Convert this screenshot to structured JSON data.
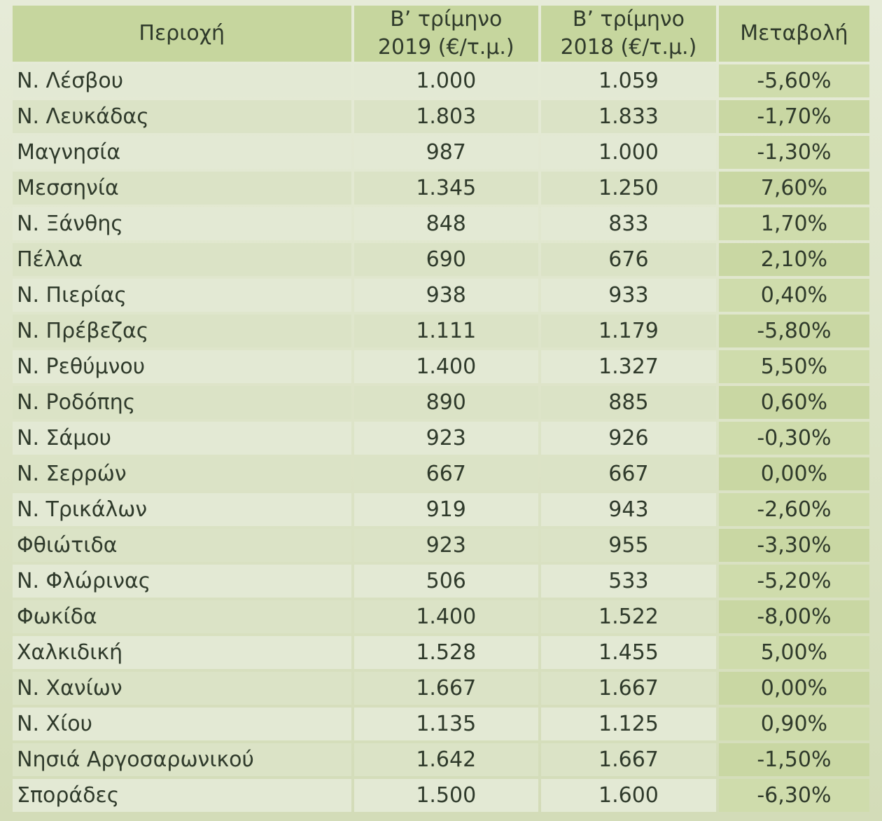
{
  "headers": {
    "region": "Περιοχή",
    "q2_2019_line1": "Β’ τρίμηνο",
    "q2_2019_line2": "2019 (€/τ.μ.)",
    "q2_2018_line1": "Β’ τρίμηνο",
    "q2_2018_line2": "2018 (€/τ.μ.)",
    "change": "Μεταβολή"
  },
  "rows": [
    {
      "region": "Ν. Λέσβου",
      "y2019": "1.000",
      "y2018": "1.059",
      "change": "-5,60%"
    },
    {
      "region": "Ν. Λευκάδας",
      "y2019": "1.803",
      "y2018": "1.833",
      "change": "-1,70%"
    },
    {
      "region": "Μαγνησία",
      "y2019": "987",
      "y2018": "1.000",
      "change": "-1,30%"
    },
    {
      "region": "Μεσσηνία",
      "y2019": "1.345",
      "y2018": "1.250",
      "change": "7,60%"
    },
    {
      "region": "Ν. Ξάνθης",
      "y2019": "848",
      "y2018": "833",
      "change": "1,70%"
    },
    {
      "region": "Πέλλα",
      "y2019": "690",
      "y2018": "676",
      "change": "2,10%"
    },
    {
      "region": "Ν. Πιερίας",
      "y2019": "938",
      "y2018": "933",
      "change": "0,40%"
    },
    {
      "region": "Ν. Πρέβεζας",
      "y2019": "1.111",
      "y2018": "1.179",
      "change": "-5,80%"
    },
    {
      "region": "Ν. Ρεθύμνου",
      "y2019": "1.400",
      "y2018": "1.327",
      "change": "5,50%"
    },
    {
      "region": "Ν. Ροδόπης",
      "y2019": "890",
      "y2018": "885",
      "change": "0,60%"
    },
    {
      "region": "Ν. Σάμου",
      "y2019": "923",
      "y2018": "926",
      "change": "-0,30%"
    },
    {
      "region": "Ν. Σερρών",
      "y2019": "667",
      "y2018": "667",
      "change": "0,00%"
    },
    {
      "region": "Ν. Τρικάλων",
      "y2019": "919",
      "y2018": "943",
      "change": "-2,60%"
    },
    {
      "region": "Φθιώτιδα",
      "y2019": "923",
      "y2018": "955",
      "change": "-3,30%"
    },
    {
      "region": "Ν. Φλώρινας",
      "y2019": "506",
      "y2018": "533",
      "change": "-5,20%"
    },
    {
      "region": "Φωκίδα",
      "y2019": "1.400",
      "y2018": "1.522",
      "change": "-8,00%"
    },
    {
      "region": "Χαλκιδική",
      "y2019": "1.528",
      "y2018": "1.455",
      "change": "5,00%"
    },
    {
      "region": "Ν. Χανίων",
      "y2019": "1.667",
      "y2018": "1.667",
      "change": "0,00%"
    },
    {
      "region": "Ν. Χίου",
      "y2019": "1.135",
      "y2018": "1.125",
      "change": "0,90%"
    },
    {
      "region": "Νησιά Αργοσαρωνικού",
      "y2019": "1.642",
      "y2018": "1.667",
      "change": "-1,50%"
    },
    {
      "region": "Σποράδες",
      "y2019": "1.500",
      "y2018": "1.600",
      "change": "-6,30%"
    }
  ]
}
